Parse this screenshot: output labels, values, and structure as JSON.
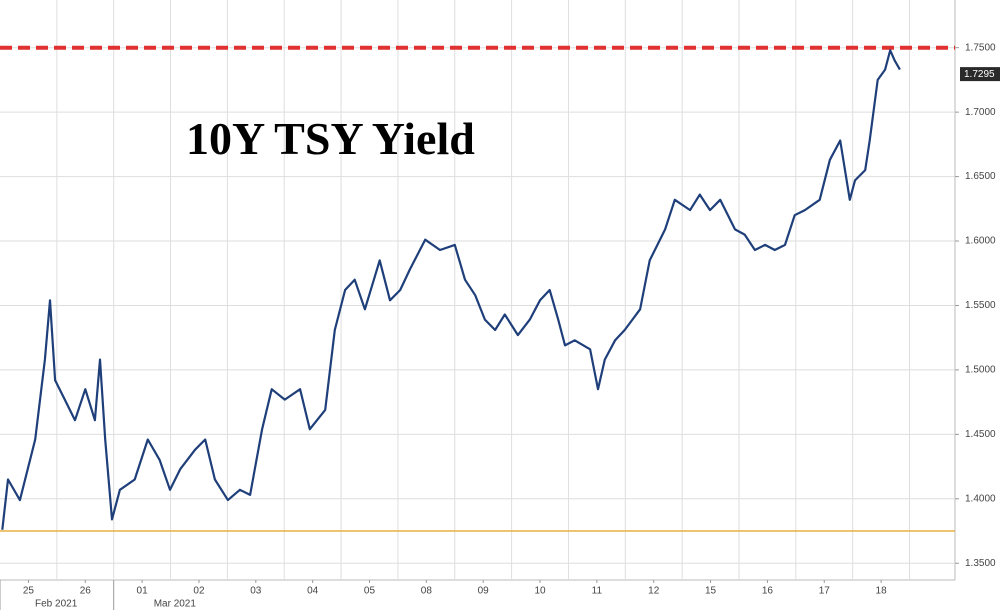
{
  "chart_data": {
    "type": "line",
    "title": "10Y TSY Yield",
    "xlim": [
      0,
      16.8
    ],
    "ylim": [
      1.337,
      1.787
    ],
    "xticks": [
      {
        "value": 0.5,
        "label": "25"
      },
      {
        "value": 1.5,
        "label": "26"
      },
      {
        "value": 2.5,
        "label": "01"
      },
      {
        "value": 3.5,
        "label": "02"
      },
      {
        "value": 4.5,
        "label": "03"
      },
      {
        "value": 5.5,
        "label": "04"
      },
      {
        "value": 6.5,
        "label": "05"
      },
      {
        "value": 7.5,
        "label": "08"
      },
      {
        "value": 8.5,
        "label": "09"
      },
      {
        "value": 9.5,
        "label": "10"
      },
      {
        "value": 10.5,
        "label": "11"
      },
      {
        "value": 11.5,
        "label": "12"
      },
      {
        "value": 12.5,
        "label": "15"
      },
      {
        "value": 13.5,
        "label": "16"
      },
      {
        "value": 14.5,
        "label": "17"
      },
      {
        "value": 15.5,
        "label": "18"
      }
    ],
    "month_labels": [
      {
        "label": "Feb 2021",
        "start": 0
      },
      {
        "label": "Mar 2021",
        "start": 2
      }
    ],
    "yticks": [
      {
        "value": 1.35,
        "label": "1.3500"
      },
      {
        "value": 1.4,
        "label": "1.4000"
      },
      {
        "value": 1.45,
        "label": "1.4500"
      },
      {
        "value": 1.5,
        "label": "1.5000"
      },
      {
        "value": 1.55,
        "label": "1.5500"
      },
      {
        "value": 1.6,
        "label": "1.6000"
      },
      {
        "value": 1.65,
        "label": "1.6500"
      },
      {
        "value": 1.7,
        "label": "1.7000"
      },
      {
        "value": 1.75,
        "label": "1.7500"
      }
    ],
    "grid": true,
    "ref_lines": [
      {
        "value": 1.75,
        "color": "#e03030",
        "dashed": true
      },
      {
        "value": 1.375,
        "color": "#e8b040",
        "dashed": false
      }
    ],
    "last_value": {
      "value": 1.7295,
      "label": "1.7295"
    },
    "series": [
      {
        "color": "#1f3f7a",
        "x": [
          0.04,
          0.14,
          0.35,
          0.62,
          0.79,
          0.88,
          0.97,
          1.14,
          1.32,
          1.5,
          1.67,
          1.76,
          1.85,
          1.97,
          2.11,
          2.37,
          2.6,
          2.81,
          2.99,
          3.17,
          3.43,
          3.61,
          3.78,
          4.01,
          4.22,
          4.4,
          4.61,
          4.78,
          5.01,
          5.28,
          5.45,
          5.72,
          5.89,
          6.07,
          6.24,
          6.42,
          6.68,
          6.86,
          7.04,
          7.21,
          7.48,
          7.74,
          8.0,
          8.18,
          8.36,
          8.53,
          8.71,
          8.88,
          9.11,
          9.32,
          9.5,
          9.67,
          9.82,
          9.94,
          10.11,
          10.38,
          10.52,
          10.64,
          10.82,
          10.99,
          11.26,
          11.43,
          11.7,
          11.87,
          12.14,
          12.31,
          12.49,
          12.67,
          12.93,
          13.1,
          13.28,
          13.46,
          13.63,
          13.81,
          13.98,
          14.16,
          14.42,
          14.6,
          14.78,
          14.95,
          15.04,
          15.22,
          15.3,
          15.44,
          15.57,
          15.66,
          15.74,
          15.83
        ],
        "values": [
          1.376,
          1.415,
          1.399,
          1.446,
          1.508,
          1.554,
          1.492,
          1.477,
          1.461,
          1.485,
          1.461,
          1.508,
          1.446,
          1.384,
          1.407,
          1.415,
          1.446,
          1.43,
          1.407,
          1.423,
          1.438,
          1.446,
          1.415,
          1.399,
          1.407,
          1.403,
          1.454,
          1.485,
          1.477,
          1.485,
          1.454,
          1.469,
          1.531,
          1.562,
          1.57,
          1.547,
          1.585,
          1.554,
          1.562,
          1.578,
          1.601,
          1.593,
          1.597,
          1.57,
          1.558,
          1.539,
          1.531,
          1.543,
          1.527,
          1.539,
          1.554,
          1.562,
          1.539,
          1.519,
          1.523,
          1.516,
          1.485,
          1.508,
          1.523,
          1.531,
          1.547,
          1.585,
          1.609,
          1.632,
          1.624,
          1.636,
          1.624,
          1.632,
          1.609,
          1.605,
          1.593,
          1.597,
          1.593,
          1.597,
          1.62,
          1.624,
          1.632,
          1.663,
          1.678,
          1.632,
          1.647,
          1.655,
          1.678,
          1.725,
          1.733,
          1.748,
          1.74,
          1.733
        ]
      }
    ]
  }
}
